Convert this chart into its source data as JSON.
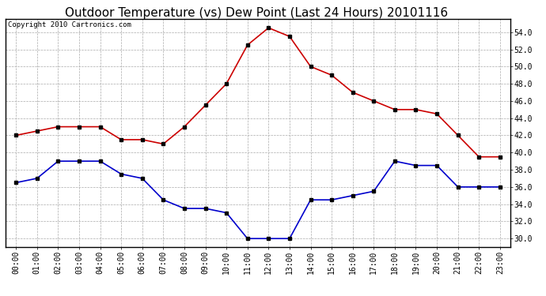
{
  "title": "Outdoor Temperature (vs) Dew Point (Last 24 Hours) 20101116",
  "copyright_text": "Copyright 2010 Cartronics.com",
  "hours": [
    "00:00",
    "01:00",
    "02:00",
    "03:00",
    "04:00",
    "05:00",
    "06:00",
    "07:00",
    "08:00",
    "09:00",
    "10:00",
    "11:00",
    "12:00",
    "13:00",
    "14:00",
    "15:00",
    "16:00",
    "17:00",
    "18:00",
    "19:00",
    "20:00",
    "21:00",
    "22:00",
    "23:00"
  ],
  "temp": [
    42.0,
    42.5,
    43.0,
    43.0,
    43.0,
    41.5,
    41.5,
    41.0,
    43.0,
    45.5,
    48.0,
    52.5,
    54.5,
    53.5,
    50.0,
    49.0,
    47.0,
    46.0,
    45.0,
    45.0,
    44.5,
    42.0,
    39.5,
    39.5
  ],
  "dew": [
    36.5,
    37.0,
    39.0,
    39.0,
    39.0,
    37.5,
    37.0,
    34.5,
    33.5,
    33.5,
    33.0,
    30.0,
    30.0,
    30.0,
    34.5,
    34.5,
    35.0,
    35.5,
    39.0,
    38.5,
    38.5,
    36.0,
    36.0,
    36.0
  ],
  "temp_color": "#cc0000",
  "dew_color": "#0000cc",
  "bg_color": "#ffffff",
  "grid_color": "#aaaaaa",
  "ylim_min": 29.0,
  "ylim_max": 55.5,
  "ytick_min": 30.0,
  "ytick_max": 54.0,
  "ytick_step": 2.0,
  "title_fontsize": 11,
  "copyright_fontsize": 6.5,
  "tick_fontsize": 7,
  "line_width": 1.2,
  "marker": "s",
  "marker_size": 2.5
}
